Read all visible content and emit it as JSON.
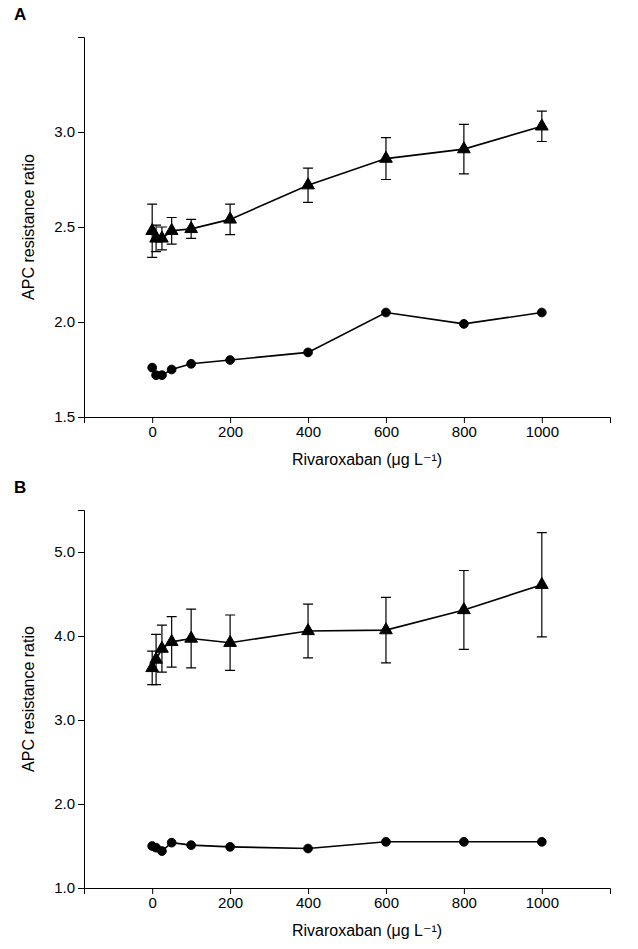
{
  "chart_data": [
    {
      "type": "line",
      "title": "A",
      "x_label": "Rivaroxaban (μg L⁻¹)",
      "y_label": "APC resistance ratio",
      "x": [
        0,
        10,
        25,
        50,
        100,
        200,
        400,
        600,
        800,
        1000
      ],
      "xlim": [
        -175,
        1175
      ],
      "xticks": [
        0,
        200,
        400,
        600,
        800,
        1000
      ],
      "ylim": [
        1.5,
        3.5
      ],
      "yticks": [
        1.5,
        {
          "value": 2,
          "label": "2.0"
        },
        2.5,
        {
          "value": 3,
          "label": "3.0"
        }
      ],
      "series": [
        {
          "color": "#000000",
          "marker": "triangle",
          "values": [
            2.48,
            2.44,
            2.44,
            2.48,
            2.49,
            2.54,
            2.72,
            2.86,
            2.91,
            3.03
          ],
          "error": [
            0.14,
            0.07,
            0.06,
            0.07,
            0.05,
            0.08,
            0.09,
            0.11,
            0.13,
            0.08
          ]
        },
        {
          "color": "#000000",
          "marker": "circle",
          "values": [
            1.76,
            1.72,
            1.72,
            1.75,
            1.78,
            1.8,
            1.84,
            2.05,
            1.99,
            2.05
          ]
        }
      ]
    },
    {
      "type": "line",
      "title": "B",
      "x_label": "Rivaroxaban (μg L⁻¹)",
      "y_label": "APC resistance ratio",
      "x": [
        0,
        10,
        25,
        50,
        100,
        200,
        400,
        600,
        800,
        1000
      ],
      "xlim": [
        -175,
        1175
      ],
      "xticks": [
        0,
        200,
        400,
        600,
        800,
        1000
      ],
      "ylim": [
        1,
        5.5
      ],
      "yticks": [
        {
          "value": 1,
          "label": "1.0"
        },
        {
          "value": 2,
          "label": "2.0"
        },
        {
          "value": 3,
          "label": "3.0"
        },
        {
          "value": 4,
          "label": "4.0"
        },
        {
          "value": 5,
          "label": "5.0"
        }
      ],
      "series": [
        {
          "color": "#000000",
          "marker": "triangle",
          "values": [
            3.62,
            3.72,
            3.85,
            3.93,
            3.97,
            3.92,
            4.06,
            4.07,
            4.31,
            4.61
          ],
          "error": [
            0.2,
            0.3,
            0.28,
            0.3,
            0.35,
            0.33,
            0.32,
            0.39,
            0.47,
            0.62
          ]
        },
        {
          "color": "#000000",
          "marker": "circle",
          "values": [
            1.5,
            1.48,
            1.44,
            1.54,
            1.51,
            1.49,
            1.47,
            1.55,
            1.55,
            1.55
          ]
        }
      ]
    }
  ]
}
